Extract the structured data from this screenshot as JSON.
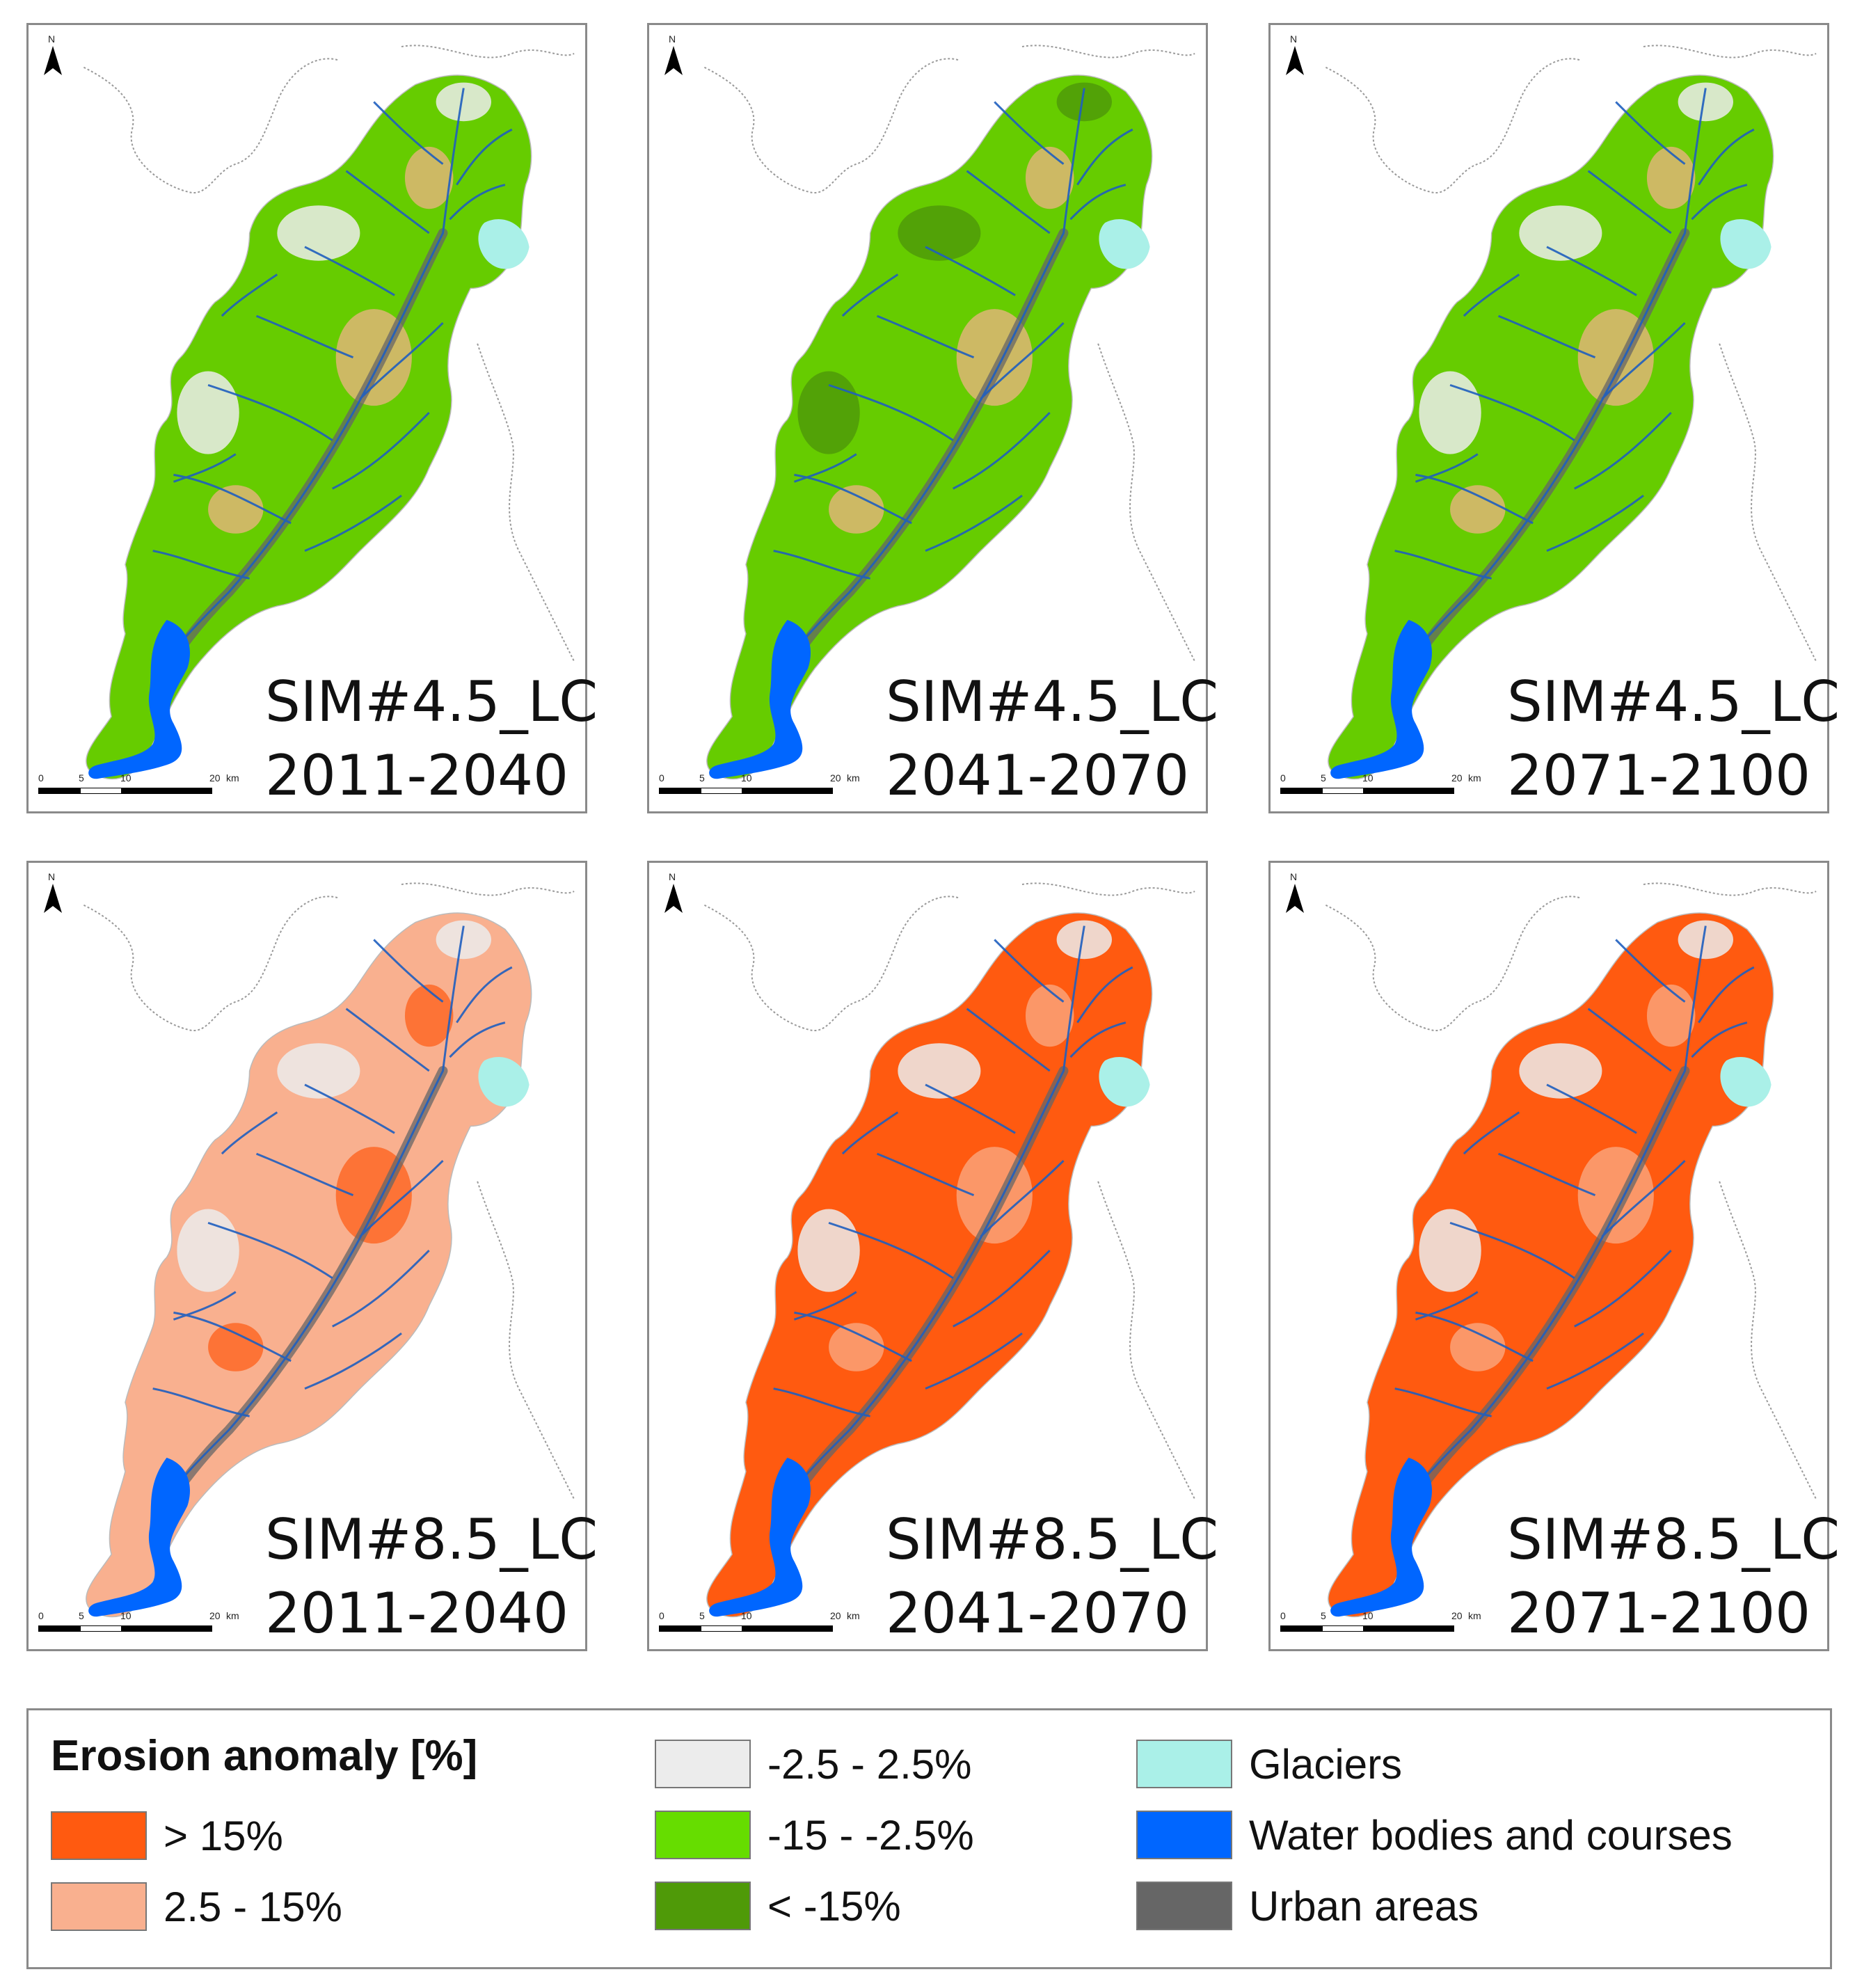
{
  "panels": [
    {
      "scenario": "SIM#4.5_LC",
      "period": "2011-2040",
      "base": "#66cc00",
      "dominant": "green-mixed"
    },
    {
      "scenario": "SIM#4.5_LC",
      "period": "2041-2070",
      "base": "#66cc00",
      "dominant": "green-dark-center"
    },
    {
      "scenario": "SIM#4.5_LC",
      "period": "2071-2100",
      "base": "#66cc00",
      "dominant": "green-light"
    },
    {
      "scenario": "SIM#8.5_LC",
      "period": "2011-2040",
      "base": "#f9b08f",
      "dominant": "salmon"
    },
    {
      "scenario": "SIM#8.5_LC",
      "period": "2041-2070",
      "base": "#ff5a10",
      "dominant": "orange"
    },
    {
      "scenario": "SIM#8.5_LC",
      "period": "2071-2100",
      "base": "#ff5a10",
      "dominant": "orange"
    }
  ],
  "scalebar": {
    "labels": [
      "0",
      "5",
      "10",
      "20"
    ],
    "unit": "km"
  },
  "north_label": "N",
  "legend": {
    "title": "Erosion anomaly [%]",
    "items": [
      {
        "label": "> 15%",
        "color": "#ff5a10"
      },
      {
        "label": "2.5 - 15%",
        "color": "#f9b08f"
      },
      {
        "label": "-2.5 - 2.5%",
        "color": "#ececec"
      },
      {
        "label": "-15 - -2.5%",
        "color": "#66dd00"
      },
      {
        "label": "< -15%",
        "color": "#4f9a08"
      },
      {
        "label": "Glaciers",
        "color": "#aaf0e8"
      },
      {
        "label": "Water bodies and courses",
        "color": "#0066ff"
      },
      {
        "label": "Urban areas",
        "color": "#666666"
      }
    ]
  }
}
